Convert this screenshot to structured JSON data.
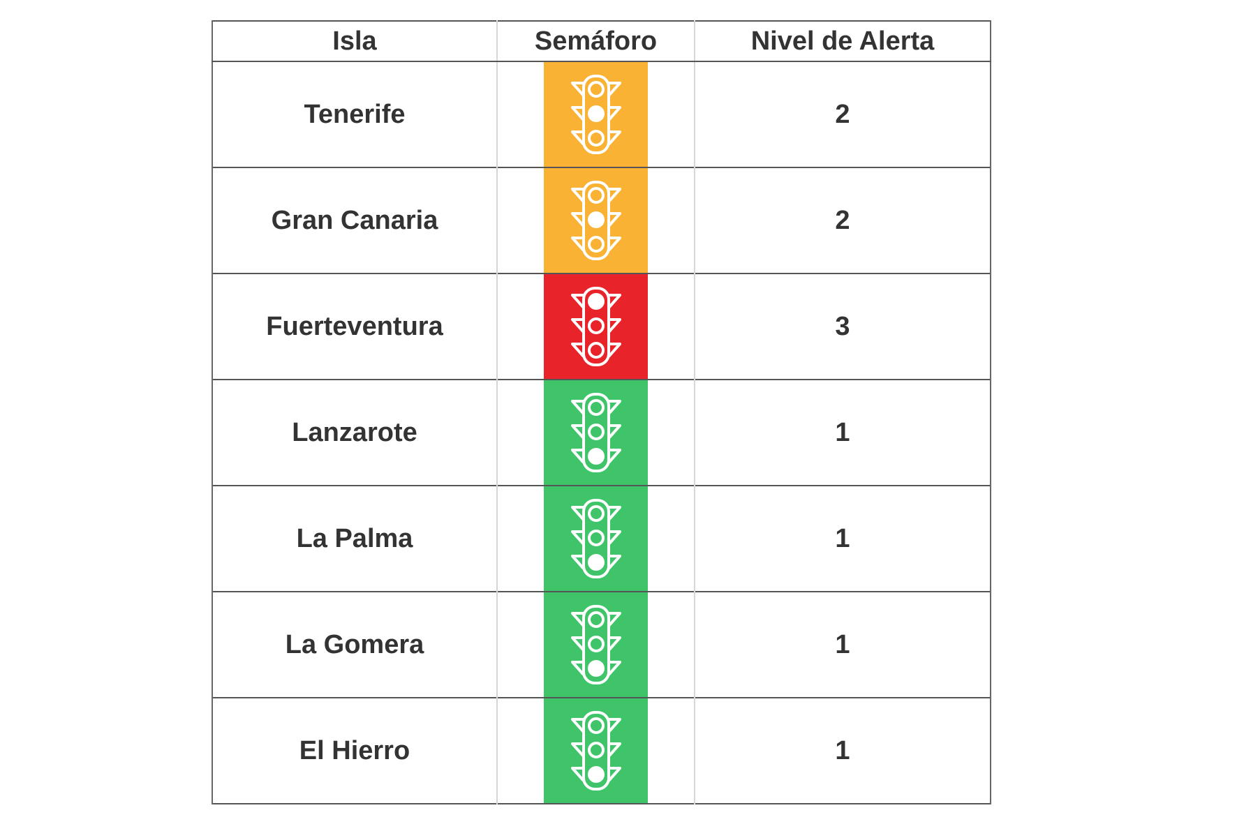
{
  "table": {
    "headers": {
      "isla": "Isla",
      "semaforo": "Semáforo",
      "nivel": "Nivel de Alerta"
    },
    "rows": [
      {
        "isla": "Tenerife",
        "nivel": "2",
        "light": "amber",
        "active": "middle",
        "icon": "traffic-light-icon"
      },
      {
        "isla": "Gran Canaria",
        "nivel": "2",
        "light": "amber",
        "active": "middle",
        "icon": "traffic-light-icon"
      },
      {
        "isla": "Fuerteventura",
        "nivel": "3",
        "light": "red",
        "active": "top",
        "icon": "traffic-light-icon"
      },
      {
        "isla": "Lanzarote",
        "nivel": "1",
        "light": "green",
        "active": "bottom",
        "icon": "traffic-light-icon"
      },
      {
        "isla": "La Palma",
        "nivel": "1",
        "light": "green",
        "active": "bottom",
        "icon": "traffic-light-icon"
      },
      {
        "isla": "La Gomera",
        "nivel": "1",
        "light": "green",
        "active": "bottom",
        "icon": "traffic-light-icon"
      },
      {
        "isla": "El Hierro",
        "nivel": "1",
        "light": "green",
        "active": "bottom",
        "icon": "traffic-light-icon"
      }
    ]
  },
  "colors": {
    "amber": "#f9b233",
    "red": "#e8232a",
    "green": "#3fc46a",
    "text": "#333333",
    "icon": "#ffffff"
  }
}
